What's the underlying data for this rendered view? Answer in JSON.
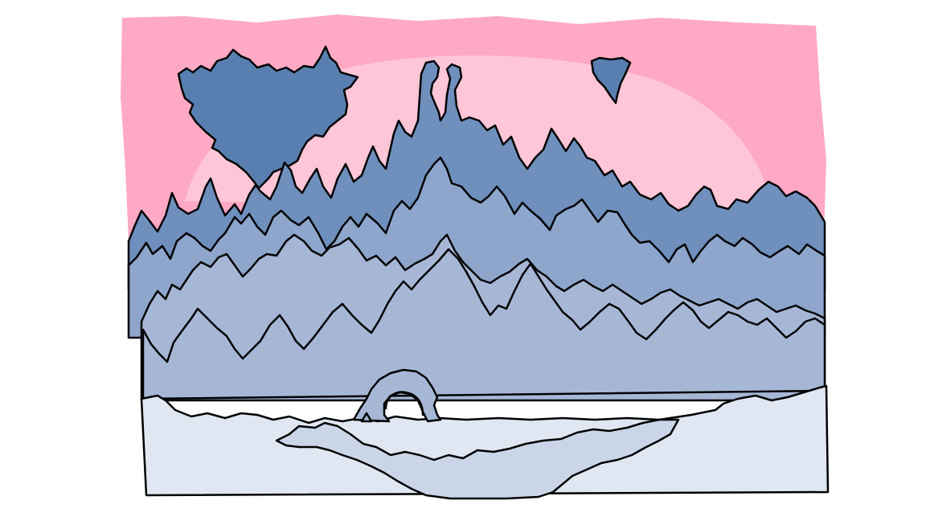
{
  "scene": {
    "description_free": true,
    "palette": {
      "page_background": "#ffffff",
      "sky_outer": "#ffa9c5",
      "sky_inner": "#ffc6d8",
      "far_ridge": "#587faf",
      "mid_forest": "#6f8fbd",
      "near_forest": "#8ea6cc",
      "front_hills": "#a6b7d6",
      "snow_ground": "#e0e7f2",
      "reflection": "#cad6e8",
      "outline": "#000000"
    },
    "icons": [
      "floating-island-icon",
      "small-floating-rock-icon",
      "stone-arch-icon"
    ]
  }
}
